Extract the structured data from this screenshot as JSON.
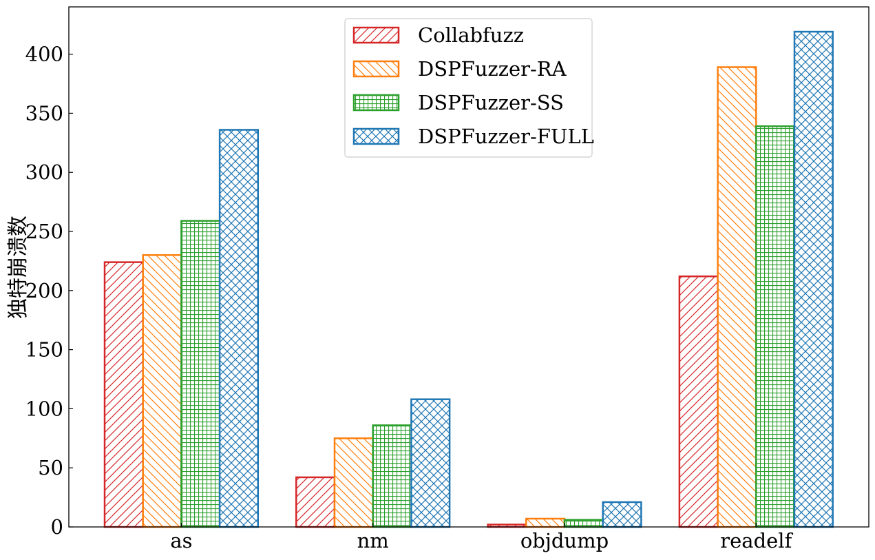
{
  "chart_data": {
    "type": "bar",
    "title": "",
    "xlabel": "",
    "ylabel": "独特崩溃数",
    "categories": [
      "as",
      "nm",
      "objdump",
      "readelf"
    ],
    "ylim": [
      0,
      440
    ],
    "yticks": [
      0,
      50,
      100,
      150,
      200,
      250,
      300,
      350,
      400
    ],
    "grid": false,
    "legend_position": "top-center",
    "series": [
      {
        "name": "Collabfuzz",
        "color": "#d62728",
        "hatch": "diagonal-forward",
        "values": [
          224,
          42,
          2,
          212
        ]
      },
      {
        "name": "DSPFuzzer-RA",
        "color": "#ff7f0e",
        "hatch": "diagonal-back",
        "values": [
          230,
          75,
          7,
          389
        ]
      },
      {
        "name": "DSPFuzzer-SS",
        "color": "#2ca02c",
        "hatch": "grid",
        "values": [
          259,
          86,
          6,
          339
        ]
      },
      {
        "name": "DSPFuzzer-FULL",
        "color": "#1f77b4",
        "hatch": "crosshatch",
        "values": [
          336,
          108,
          21,
          419
        ]
      }
    ]
  }
}
